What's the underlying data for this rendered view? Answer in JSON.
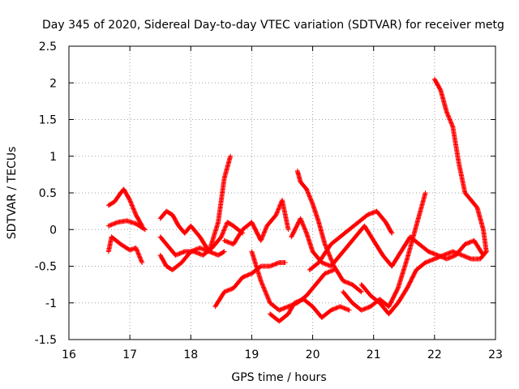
{
  "chart_data": {
    "type": "scatter",
    "title": "Day 345 of 2020, Sidereal Day-to-day VTEC variation (SDTVAR) for receiver metg",
    "xlabel": "GPS time / hours",
    "ylabel": "SDTVAR / TECUs",
    "xlim": [
      16,
      23
    ],
    "ylim": [
      -1.5,
      2.5
    ],
    "x_ticks": [
      16,
      17,
      18,
      19,
      20,
      21,
      22,
      23
    ],
    "x_tick_labels": [
      "16",
      "17",
      "18",
      "19",
      "20",
      "21",
      "22",
      "23"
    ],
    "y_ticks": [
      -1.5,
      -1,
      -0.5,
      0,
      0.5,
      1,
      1.5,
      2,
      2.5
    ],
    "y_tick_labels": [
      "-1.5",
      "-1",
      "-0.5",
      "0",
      "0.5",
      "1",
      "1.5",
      "2",
      "2.5"
    ],
    "grid": true,
    "marker": "+",
    "color": "#ff0000",
    "series": [
      {
        "name": "track-1",
        "x": [
          16.65,
          16.75,
          16.85,
          16.9,
          17.0,
          17.1,
          17.2
        ],
        "y": [
          0.33,
          0.38,
          0.5,
          0.55,
          0.4,
          0.2,
          0.05
        ]
      },
      {
        "name": "track-2",
        "x": [
          16.65,
          16.8,
          16.95,
          17.1,
          17.25
        ],
        "y": [
          0.05,
          0.1,
          0.12,
          0.08,
          0.0
        ]
      },
      {
        "name": "track-3",
        "x": [
          16.65,
          16.7,
          16.85,
          17.0,
          17.1,
          17.2
        ],
        "y": [
          -0.3,
          -0.1,
          -0.2,
          -0.28,
          -0.25,
          -0.45
        ]
      },
      {
        "name": "track-4",
        "x": [
          17.5,
          17.6,
          17.7,
          17.8,
          17.9,
          18.0,
          18.15,
          18.3,
          18.45,
          18.55,
          18.65
        ],
        "y": [
          0.15,
          0.25,
          0.2,
          0.05,
          -0.05,
          0.05,
          -0.1,
          -0.3,
          0.1,
          0.7,
          1.0
        ]
      },
      {
        "name": "track-5",
        "x": [
          17.5,
          17.6,
          17.75,
          17.9,
          18.05,
          18.2,
          18.35,
          18.5,
          18.6,
          18.7,
          18.85
        ],
        "y": [
          -0.1,
          -0.2,
          -0.35,
          -0.3,
          -0.3,
          -0.35,
          -0.25,
          -0.1,
          0.1,
          0.05,
          -0.05
        ]
      },
      {
        "name": "track-6",
        "x": [
          17.5,
          17.6,
          17.7,
          17.85,
          18.0,
          18.15,
          18.3,
          18.45,
          18.55
        ],
        "y": [
          -0.35,
          -0.5,
          -0.55,
          -0.45,
          -0.3,
          -0.25,
          -0.3,
          -0.35,
          -0.3
        ]
      },
      {
        "name": "track-7",
        "x": [
          18.4,
          18.55,
          18.7,
          18.85,
          19.0,
          19.15,
          19.3,
          19.45,
          19.55
        ],
        "y": [
          -1.05,
          -0.85,
          -0.8,
          -0.65,
          -0.6,
          -0.5,
          -0.5,
          -0.45,
          -0.45
        ]
      },
      {
        "name": "track-8",
        "x": [
          18.55,
          18.7,
          18.85,
          19.0,
          19.15,
          19.25,
          19.4,
          19.5,
          19.6
        ],
        "y": [
          -0.15,
          -0.2,
          0.0,
          0.1,
          -0.15,
          0.05,
          0.2,
          0.4,
          0.0
        ]
      },
      {
        "name": "track-9",
        "x": [
          19.0,
          19.15,
          19.3,
          19.45,
          19.6,
          19.75,
          19.9,
          20.05,
          20.2,
          20.35
        ],
        "y": [
          -0.3,
          -0.7,
          -1.0,
          -1.1,
          -1.05,
          -1.0,
          -0.9,
          -0.75,
          -0.6,
          -0.55
        ]
      },
      {
        "name": "track-10",
        "x": [
          19.3,
          19.45,
          19.6,
          19.7,
          19.85,
          20.0,
          20.15,
          20.3,
          20.45,
          20.6
        ],
        "y": [
          -1.15,
          -1.25,
          -1.15,
          -1.0,
          -0.95,
          -1.05,
          -1.2,
          -1.1,
          -1.05,
          -1.1
        ]
      },
      {
        "name": "track-11",
        "x": [
          19.65,
          19.8,
          19.9,
          20.0,
          20.15,
          20.3,
          20.5,
          20.7,
          20.85,
          21.0,
          21.15,
          21.3
        ],
        "y": [
          -0.1,
          0.15,
          -0.05,
          -0.3,
          -0.45,
          -0.5,
          -0.3,
          -0.1,
          0.05,
          -0.15,
          -0.35,
          -0.5
        ]
      },
      {
        "name": "track-12",
        "x": [
          19.75,
          19.8,
          19.9,
          20.0,
          20.1,
          20.2,
          20.35,
          20.5,
          20.65,
          20.8
        ],
        "y": [
          0.8,
          0.65,
          0.55,
          0.35,
          0.1,
          -0.2,
          -0.5,
          -0.7,
          -0.75,
          -0.85
        ]
      },
      {
        "name": "track-13",
        "x": [
          19.95,
          20.1,
          20.3,
          20.45,
          20.6,
          20.75,
          20.9,
          21.05,
          21.2,
          21.3
        ],
        "y": [
          -0.55,
          -0.45,
          -0.2,
          -0.1,
          0.0,
          0.1,
          0.2,
          0.25,
          0.1,
          -0.05
        ]
      },
      {
        "name": "track-14",
        "x": [
          20.5,
          20.65,
          20.8,
          20.95,
          21.1,
          21.25,
          21.4,
          21.55,
          21.7,
          21.85
        ],
        "y": [
          -0.85,
          -1.0,
          -1.1,
          -1.05,
          -0.95,
          -1.05,
          -0.8,
          -0.4,
          0.05,
          0.5
        ]
      },
      {
        "name": "track-15",
        "x": [
          20.8,
          20.95,
          21.1,
          21.25,
          21.4,
          21.55,
          21.7,
          21.85,
          22.0,
          22.15,
          22.3,
          22.45,
          22.6,
          22.75,
          22.85
        ],
        "y": [
          -0.75,
          -0.9,
          -1.0,
          -1.15,
          -1.0,
          -0.8,
          -0.55,
          -0.45,
          -0.4,
          -0.35,
          -0.3,
          -0.35,
          -0.4,
          -0.4,
          -0.3
        ]
      },
      {
        "name": "track-16",
        "x": [
          21.3,
          21.45,
          21.6,
          21.75,
          21.9,
          22.05,
          22.2,
          22.35,
          22.5,
          22.65,
          22.8
        ],
        "y": [
          -0.5,
          -0.3,
          -0.1,
          -0.2,
          -0.3,
          -0.35,
          -0.4,
          -0.35,
          -0.2,
          -0.15,
          -0.35
        ]
      },
      {
        "name": "track-17",
        "x": [
          22.0,
          22.1,
          22.2,
          22.3,
          22.4,
          22.5,
          22.6,
          22.7,
          22.8,
          22.85
        ],
        "y": [
          2.05,
          1.9,
          1.6,
          1.4,
          0.9,
          0.5,
          0.4,
          0.3,
          0.0,
          -0.3
        ]
      }
    ]
  }
}
